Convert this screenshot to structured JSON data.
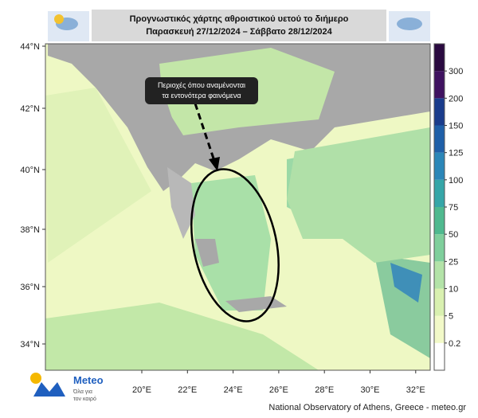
{
  "header": {
    "title_line1": "Προγνωστικός χάρτης αθροιστικού υετού το διήμερο",
    "title_line2": "Παρασκευή 27/12/2024 – Σάββατο 28/12/2024"
  },
  "map": {
    "lat_labels": [
      "44°N",
      "42°N",
      "40°N",
      "38°N",
      "36°N",
      "34°N"
    ],
    "lon_labels": [
      "20°E",
      "22°E",
      "24°E",
      "26°E",
      "28°E",
      "30°E",
      "32°E"
    ],
    "annotation_line1": "Περιοχές όπου αναμένονται",
    "annotation_line2": "τα εντονότερα φαινόμενα"
  },
  "colorbar": {
    "levels": [
      0.2,
      5,
      10,
      25,
      50,
      75,
      100,
      125,
      150,
      200,
      300
    ],
    "colors": [
      "#ffffff",
      "#f2f9c8",
      "#d9f0b0",
      "#b3e3a8",
      "#7fcf9c",
      "#4fb98f",
      "#36a6a8",
      "#2b86b8",
      "#1f5fa8",
      "#1a3c8c",
      "#3f1260",
      "#2a0a40"
    ]
  },
  "logo": {
    "name": "Meteo",
    "tagline_line1": "Όλα για",
    "tagline_line2": "τον καιρό"
  },
  "footer": {
    "credit": "National Observatory of Athens, Greece - meteo.gr"
  }
}
